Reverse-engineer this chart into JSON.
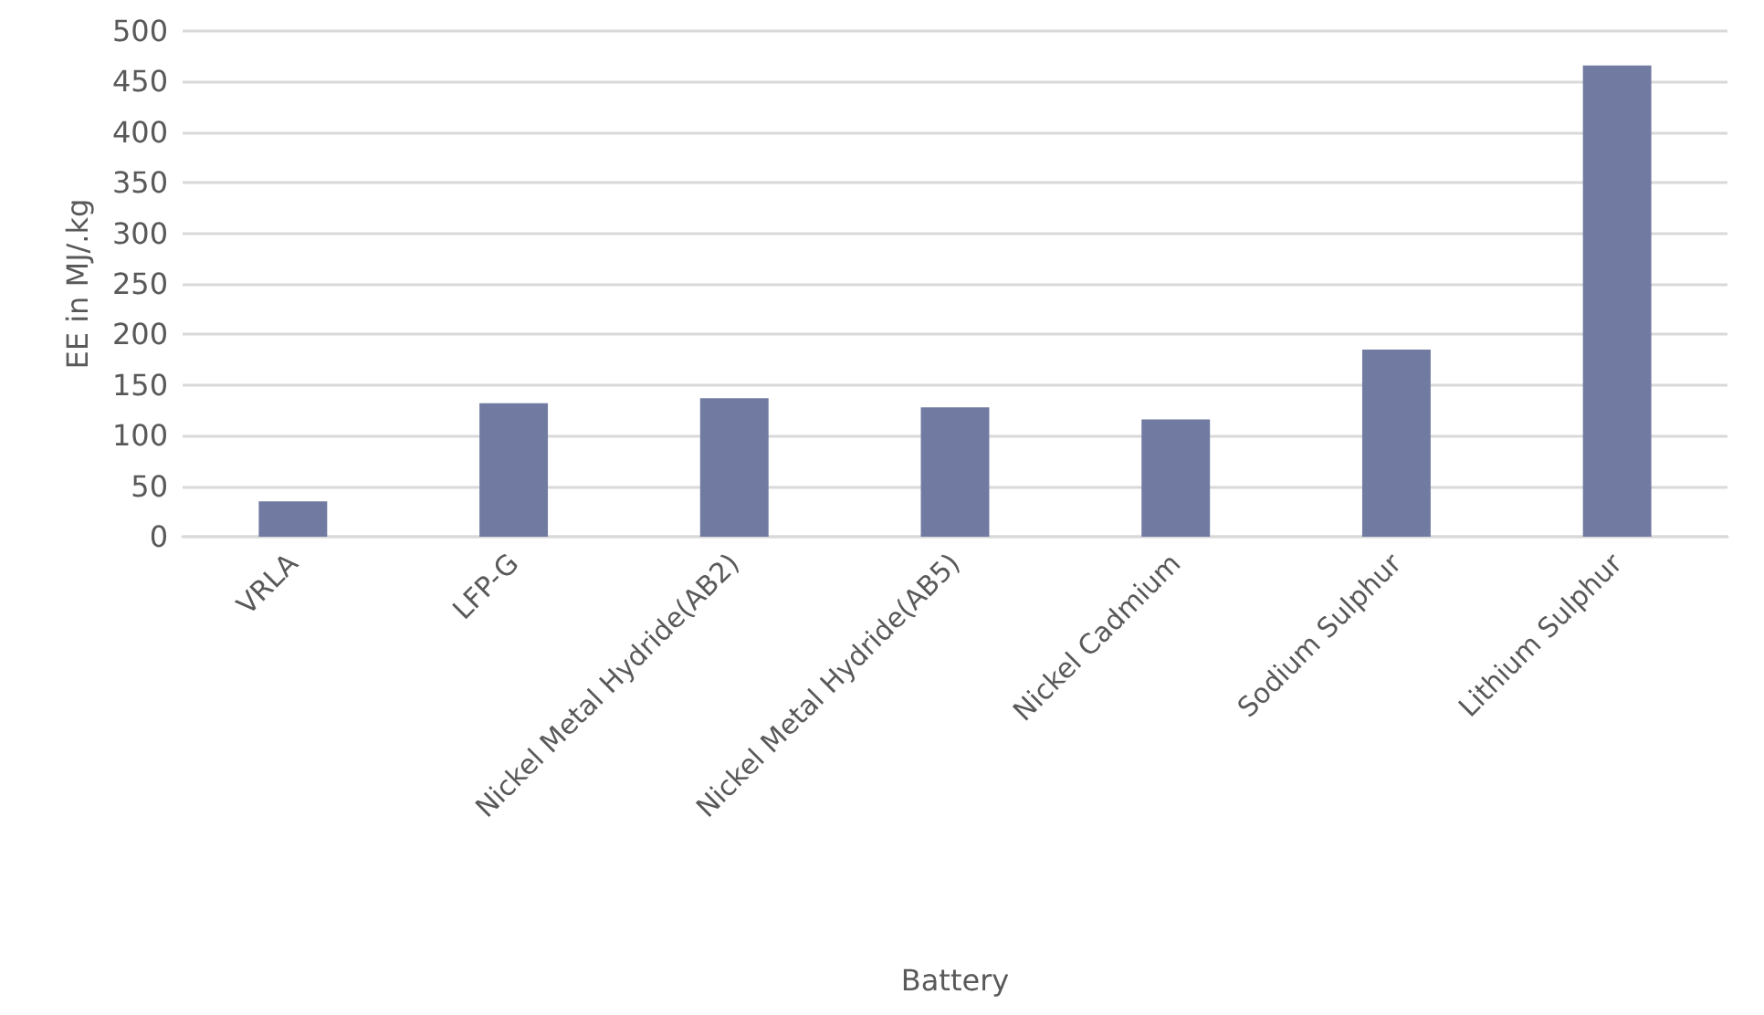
{
  "chart_data": {
    "type": "bar",
    "xlabel": "Battery",
    "ylabel": "EE in MJ/.kg",
    "categories": [
      "VRLA",
      "LFP-G",
      "Nickel Metal Hydride(AB2)",
      "Nickel Metal Hydride(AB5)",
      "Nickel Cadmium",
      "Sodium Sulphur",
      "Lithium Sulphur"
    ],
    "values": [
      35,
      132,
      137,
      128,
      116,
      185,
      466
    ],
    "color": "#717ba1",
    "ylim": [
      0,
      500
    ],
    "yticks": [
      0,
      50,
      100,
      150,
      200,
      250,
      300,
      350,
      400,
      450,
      500
    ],
    "grid": "y"
  }
}
